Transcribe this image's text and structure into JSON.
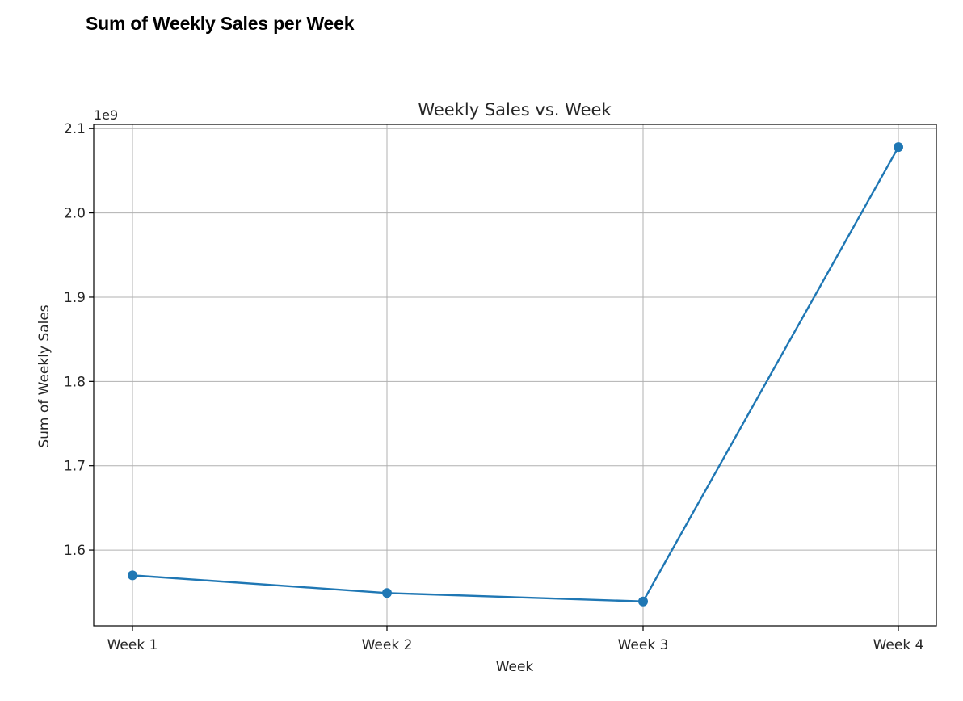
{
  "page": {
    "heading": "Sum of Weekly Sales per Week"
  },
  "chart_data": {
    "type": "line",
    "title": "Weekly Sales vs. Week",
    "xlabel": "Week",
    "ylabel": "Sum of Weekly Sales",
    "y_offset_label": "1e9",
    "y_scale_multiplier": 1000000000,
    "categories": [
      "Week 1",
      "Week 2",
      "Week 3",
      "Week 4"
    ],
    "series": [
      {
        "values": [
          1570000000,
          1549000000,
          1539000000,
          2078000000
        ],
        "color": "#1f77b4",
        "marker": "circle"
      }
    ],
    "ylim": [
      1.51,
      2.105
    ],
    "yticks": [
      1.6,
      1.7,
      1.8,
      1.9,
      2.0,
      2.1
    ],
    "ytick_labels": [
      "1.6",
      "1.7",
      "1.8",
      "1.9",
      "2.0",
      "2.1"
    ],
    "grid": true,
    "legend": "none"
  }
}
